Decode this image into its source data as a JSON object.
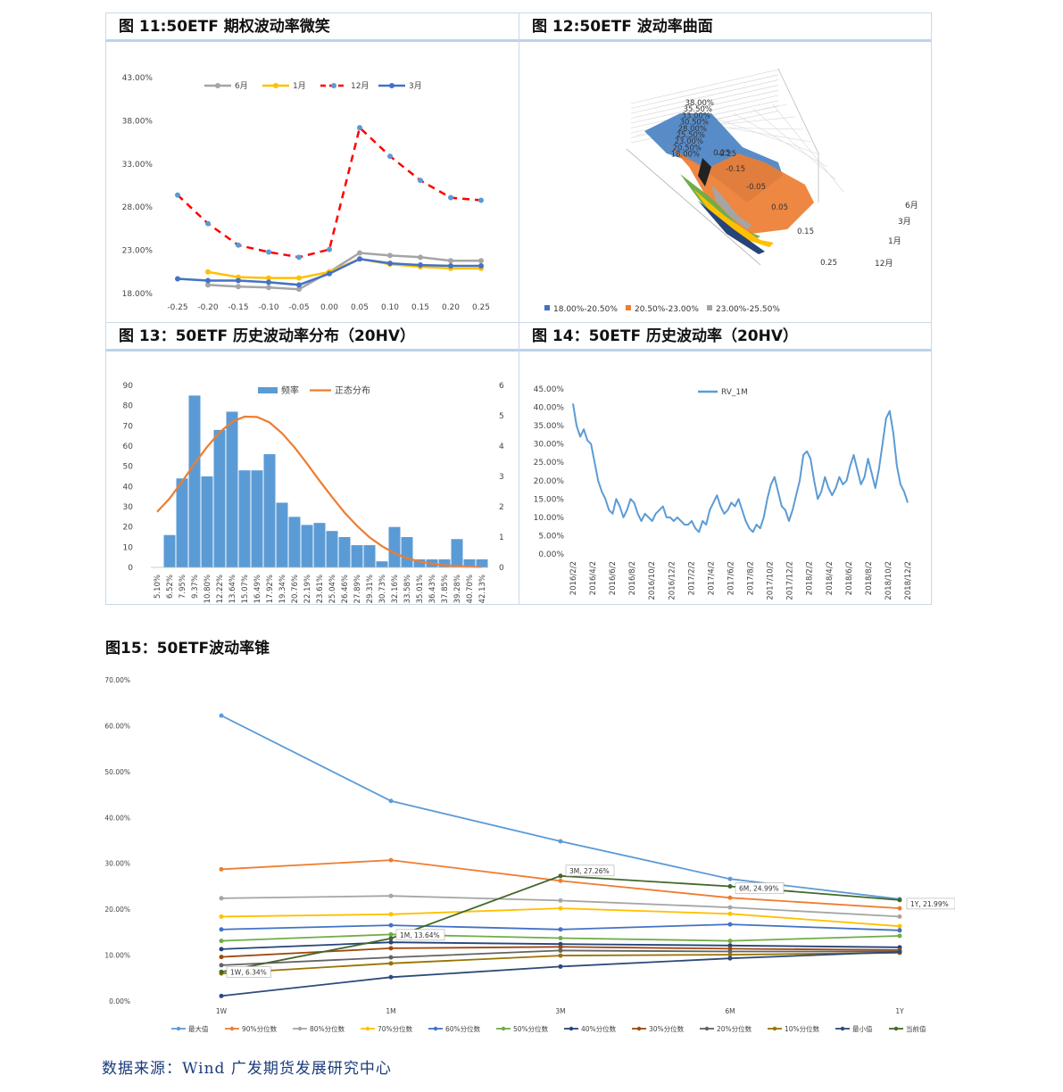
{
  "fig11": {
    "title": "图 11:50ETF 期权波动率微笑",
    "chart_data": {
      "type": "line",
      "x": [
        -0.25,
        -0.2,
        -0.15,
        -0.1,
        -0.05,
        0.0,
        0.05,
        0.1,
        0.15,
        0.2,
        0.25
      ],
      "x_tick_labels": [
        "-0.25",
        "-0.20",
        "-0.15",
        "-0.10",
        "-0.05",
        "0.00",
        "0.05",
        "0.10",
        "0.15",
        "0.20",
        "0.25"
      ],
      "y_tick_labels": [
        "18.00%",
        "23.00%",
        "28.00%",
        "33.00%",
        "38.00%",
        "43.00%"
      ],
      "ylim": [
        0.18,
        0.43
      ],
      "series": [
        {
          "name": "6月",
          "color": "#a5a5a5",
          "dash": false,
          "values": [
            null,
            0.19,
            0.188,
            0.187,
            0.185,
            0.205,
            0.227,
            0.224,
            0.222,
            0.218,
            0.218
          ]
        },
        {
          "name": "1月",
          "color": "#ffc000",
          "dash": false,
          "values": [
            null,
            0.205,
            0.199,
            0.198,
            0.198,
            0.205,
            0.22,
            0.214,
            0.211,
            0.209,
            0.209
          ]
        },
        {
          "name": "12月",
          "color": "#ff0000",
          "dash": true,
          "marker_color": "#5b9bd5",
          "values": [
            0.294,
            0.261,
            0.236,
            0.228,
            0.222,
            0.231,
            0.372,
            0.339,
            0.311,
            0.291,
            0.288
          ]
        },
        {
          "name": "3月",
          "color": "#4472c4",
          "dash": false,
          "values": [
            0.197,
            0.195,
            0.195,
            0.193,
            0.19,
            0.203,
            0.22,
            0.215,
            0.213,
            0.212,
            0.212
          ]
        }
      ]
    }
  },
  "fig12": {
    "title": "图 12:50ETF 波动率曲面",
    "chart_data": {
      "type": "area",
      "z_tick_labels": [
        "38.00%",
        "35.50%",
        "33.00%",
        "30.50%",
        "28.00%",
        "25.50%",
        "23.00%",
        "20.50%",
        "18.00%"
      ],
      "x_tick_labels": [
        "-0.25",
        "-0.15",
        "-0.05",
        "0.05",
        "0.15",
        "0.25"
      ],
      "depth_labels": [
        "6月",
        "3月",
        "1月",
        "12月"
      ],
      "legend": [
        {
          "label": "18.00%-20.50%",
          "color": "#4472c4"
        },
        {
          "label": "20.50%-23.00%",
          "color": "#ed7d31"
        },
        {
          "label": "23.00%-25.50%",
          "color": "#a5a5a5"
        }
      ]
    }
  },
  "fig13": {
    "title": "图 13：50ETF 历史波动率分布（20HV）",
    "chart_data": {
      "type": "bar",
      "categories": [
        "5.10%",
        "6.52%",
        "7.95%",
        "9.37%",
        "10.80%",
        "12.22%",
        "13.64%",
        "15.07%",
        "16.49%",
        "17.92%",
        "19.34%",
        "20.76%",
        "22.19%",
        "23.61%",
        "25.04%",
        "26.46%",
        "27.89%",
        "29.31%",
        "30.73%",
        "32.16%",
        "33.58%",
        "35.01%",
        "36.43%",
        "37.85%",
        "39.28%",
        "40.70%",
        "42.13%"
      ],
      "series": [
        {
          "name": "频率",
          "color": "#5b9bd5",
          "values": [
            0,
            16,
            44,
            85,
            45,
            68,
            77,
            48,
            48,
            56,
            32,
            25,
            21,
            22,
            18,
            15,
            11,
            11,
            3,
            20,
            15,
            4,
            4,
            4,
            14,
            4,
            4
          ]
        },
        {
          "name": "正态分布",
          "color": "#ed7d31",
          "axis": "right",
          "values": [
            1.83,
            2.27,
            2.83,
            3.42,
            3.97,
            4.45,
            4.8,
            4.97,
            4.96,
            4.78,
            4.42,
            3.96,
            3.42,
            2.86,
            2.32,
            1.81,
            1.37,
            0.99,
            0.7,
            0.47,
            0.3,
            0.2,
            0.12,
            0.07,
            0.04,
            0.02,
            0.01
          ]
        }
      ],
      "y_left_ticks": [
        "0",
        "10",
        "20",
        "30",
        "40",
        "50",
        "60",
        "70",
        "80",
        "90"
      ],
      "y_right_ticks": [
        "0",
        "1",
        "2",
        "3",
        "4",
        "5",
        "6"
      ],
      "ylim_left": [
        0,
        90
      ],
      "ylim_right": [
        0,
        6
      ]
    }
  },
  "fig14": {
    "title": "图 14：50ETF 历史波动率（20HV）",
    "chart_data": {
      "type": "line",
      "series_name": "RV_1M",
      "color": "#5b9bd5",
      "x_tick_labels": [
        "2016/2/2",
        "2016/4/2",
        "2016/6/2",
        "2016/8/2",
        "2016/10/2",
        "2016/12/2",
        "2017/2/2",
        "2017/4/2",
        "2017/6/2",
        "2017/8/2",
        "2017/10/2",
        "2017/12/2",
        "2018/2/2",
        "2018/4/2",
        "2018/6/2",
        "2018/8/2",
        "2018/10/2",
        "2018/12/2"
      ],
      "y_tick_labels": [
        "0.00%",
        "5.00%",
        "10.00%",
        "15.00%",
        "20.00%",
        "25.00%",
        "30.00%",
        "35.00%",
        "40.00%",
        "45.00%"
      ],
      "ylim": [
        0,
        0.45
      ],
      "values": [
        0.41,
        0.35,
        0.32,
        0.34,
        0.31,
        0.3,
        0.25,
        0.2,
        0.17,
        0.15,
        0.12,
        0.11,
        0.15,
        0.13,
        0.1,
        0.12,
        0.15,
        0.14,
        0.11,
        0.09,
        0.11,
        0.1,
        0.09,
        0.11,
        0.12,
        0.13,
        0.1,
        0.1,
        0.09,
        0.1,
        0.09,
        0.08,
        0.08,
        0.09,
        0.07,
        0.06,
        0.09,
        0.08,
        0.12,
        0.14,
        0.16,
        0.13,
        0.11,
        0.12,
        0.14,
        0.13,
        0.15,
        0.12,
        0.09,
        0.07,
        0.06,
        0.08,
        0.07,
        0.1,
        0.15,
        0.19,
        0.21,
        0.17,
        0.13,
        0.12,
        0.09,
        0.12,
        0.16,
        0.2,
        0.27,
        0.28,
        0.26,
        0.2,
        0.15,
        0.17,
        0.21,
        0.18,
        0.16,
        0.18,
        0.21,
        0.19,
        0.2,
        0.24,
        0.27,
        0.23,
        0.19,
        0.21,
        0.26,
        0.22,
        0.18,
        0.23,
        0.3,
        0.37,
        0.39,
        0.33,
        0.24,
        0.19,
        0.17,
        0.14
      ]
    }
  },
  "fig15": {
    "title": "图15：50ETF波动率锥",
    "chart_data": {
      "type": "line",
      "categories": [
        "1W",
        "1M",
        "3M",
        "6M",
        "1Y"
      ],
      "y_tick_labels": [
        "0.00%",
        "10.00%",
        "20.00%",
        "30.00%",
        "40.00%",
        "50.00%",
        "60.00%",
        "70.00%"
      ],
      "ylim": [
        0,
        0.7
      ],
      "series": [
        {
          "name": "最大值",
          "color": "#5b9bd5",
          "values": [
            0.622,
            0.436,
            0.348,
            0.266,
            0.222
          ]
        },
        {
          "name": "90%分位数",
          "color": "#ed7d31",
          "values": [
            0.287,
            0.307,
            0.262,
            0.225,
            0.202
          ]
        },
        {
          "name": "80%分位数",
          "color": "#a5a5a5",
          "values": [
            0.224,
            0.229,
            0.219,
            0.204,
            0.184
          ]
        },
        {
          "name": "70%分位数",
          "color": "#ffc000",
          "values": [
            0.184,
            0.189,
            0.202,
            0.19,
            0.163
          ]
        },
        {
          "name": "60%分位数",
          "color": "#4472c4",
          "values": [
            0.156,
            0.165,
            0.156,
            0.167,
            0.154
          ]
        },
        {
          "name": "50%分位数",
          "color": "#70ad47",
          "values": [
            0.131,
            0.145,
            0.137,
            0.131,
            0.142
          ]
        },
        {
          "name": "40%分位数",
          "color": "#264478",
          "values": [
            0.113,
            0.128,
            0.124,
            0.121,
            0.117
          ]
        },
        {
          "name": "30%分位数",
          "color": "#9e480e",
          "values": [
            0.096,
            0.115,
            0.118,
            0.114,
            0.111
          ]
        },
        {
          "name": "20%分位数",
          "color": "#636363",
          "values": [
            0.078,
            0.095,
            0.11,
            0.108,
            0.108
          ]
        },
        {
          "name": "10%分位数",
          "color": "#997300",
          "values": [
            0.06,
            0.082,
            0.099,
            0.101,
            0.105
          ]
        },
        {
          "name": "最小值",
          "color": "#2e4a7a",
          "values": [
            0.011,
            0.052,
            0.075,
            0.093,
            0.107
          ]
        },
        {
          "name": "当前值",
          "color": "#43682b",
          "values": [
            0.0634,
            0.1364,
            0.2726,
            0.2499,
            0.2199
          ]
        }
      ],
      "annotations": [
        "1W, 6.34%",
        "1M, 13.64%",
        "3M, 27.26%",
        "6M, 24.99%",
        "1Y, 21.99%"
      ]
    }
  },
  "source": "数据来源：Wind 广发期货发展研究中心"
}
